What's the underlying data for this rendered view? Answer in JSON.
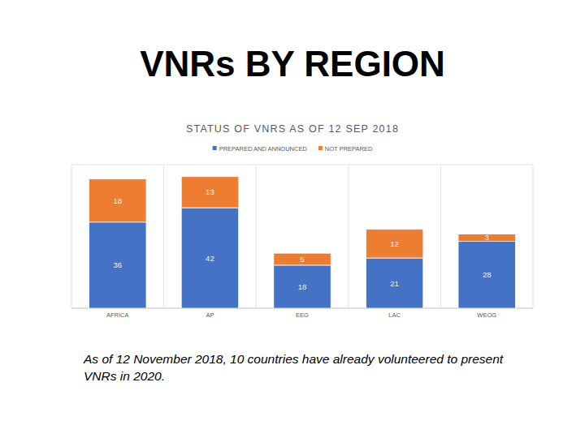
{
  "slide": {
    "title": "VNRs BY REGION",
    "note": "As of 12 November 2018, 10 countries have already volunteered to present VNRs in 2020."
  },
  "chart_data": {
    "type": "bar",
    "title": "STATUS OF VNRS AS OF 12 SEP 2018",
    "categories": [
      "AFRICA",
      "AP",
      "EEG",
      "LAC",
      "WEOG"
    ],
    "series": [
      {
        "name": "PREPARED AND ANNOUNCED",
        "color": "#4472c4",
        "values": [
          36,
          42,
          18,
          21,
          28
        ]
      },
      {
        "name": "NOT PREPARED",
        "color": "#ed7d31",
        "values": [
          18,
          13,
          5,
          12,
          3
        ]
      }
    ],
    "stacked": true,
    "data_labels": true,
    "tick_labels": "x",
    "legend": "top",
    "grid": false,
    "ylim": [
      0,
      60
    ]
  }
}
